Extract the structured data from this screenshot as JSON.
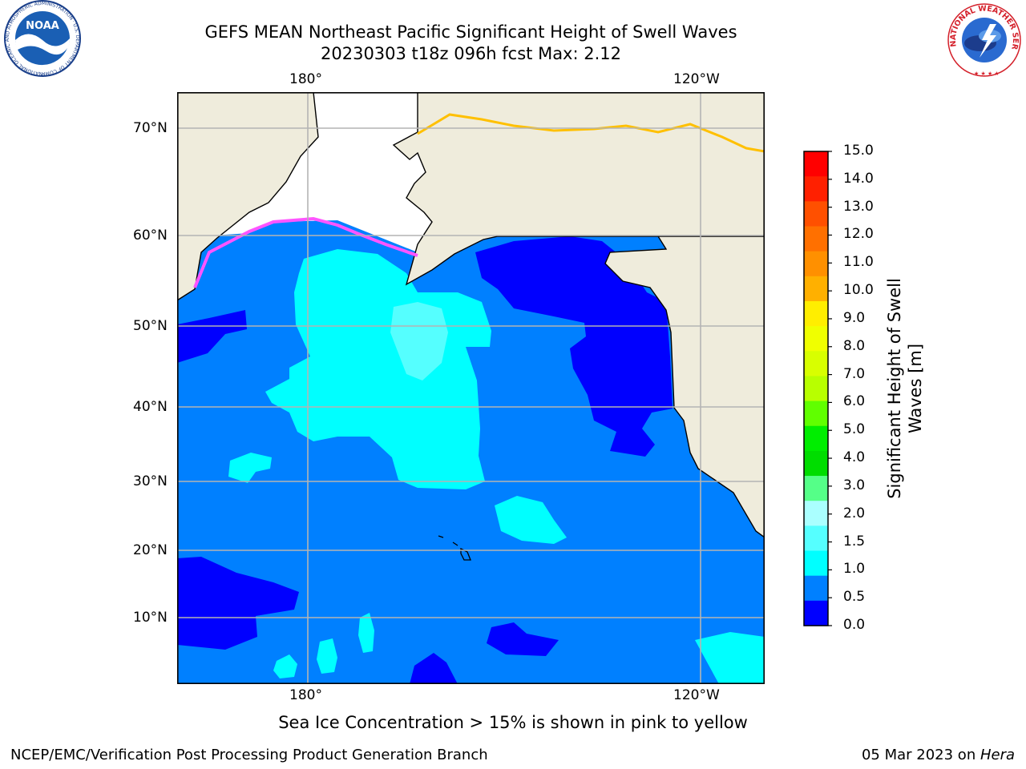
{
  "title": {
    "line1": "GEFS MEAN Northeast Pacific Significant Height of Swell Waves",
    "line2": "20230303 t18z 096h fcst   Max: 2.12"
  },
  "map": {
    "lon_ticks_top": [
      "180°",
      "120°W"
    ],
    "lon_ticks_bottom": [
      "180°",
      "120°W"
    ],
    "lat_ticks": [
      "70°N",
      "60°N",
      "50°N",
      "40°N",
      "30°N",
      "20°N",
      "10°N"
    ],
    "colors": {
      "ocean_lt_0_5": "#0000ff",
      "ocean_0_5_1_0": "#0080ff",
      "ocean_1_0_1_5": "#00ffff",
      "ocean_1_5_2_0": "#55ffff",
      "ocean_2_0_3_0": "#aaffff",
      "land": "#efecdc",
      "sea_ice": "#ff55ff",
      "grid": "#b4b4b4"
    }
  },
  "colorbar": {
    "title_line1": "Significant Height of Swell",
    "title_line2": "Waves [m]",
    "labels": [
      "15.0",
      "14.0",
      "13.0",
      "12.0",
      "11.0",
      "10.0",
      "9.0",
      "8.0",
      "7.0",
      "6.0",
      "5.0",
      "4.0",
      "3.0",
      "2.0",
      "1.5",
      "1.0",
      "0.5",
      "0.0"
    ],
    "colors": [
      "#ff0000",
      "#ff2000",
      "#ff5000",
      "#ff7000",
      "#ff9000",
      "#ffb000",
      "#ffee00",
      "#f0ff00",
      "#d8ff00",
      "#b8ff00",
      "#60ff00",
      "#00ee00",
      "#00dd00",
      "#55ff88",
      "#aaffff",
      "#55ffff",
      "#00ffff",
      "#0080ff",
      "#0000ff"
    ]
  },
  "note": "Sea Ice Concentration > 15% is shown in pink to yellow",
  "footer": {
    "left": "NCEP/EMC/Verification Post Processing Product Generation Branch",
    "right_date": "05 Mar 2023 on ",
    "right_machine": "Hera"
  },
  "logos": {
    "noaa_text": "NOAA",
    "noaa_ring": "NATIONAL OCEANIC AND ATMOSPHERIC ADMINISTRATION · U.S. DEPARTMENT OF COMMERCE",
    "nws_ring": "NATIONAL WEATHER SERVICE"
  }
}
